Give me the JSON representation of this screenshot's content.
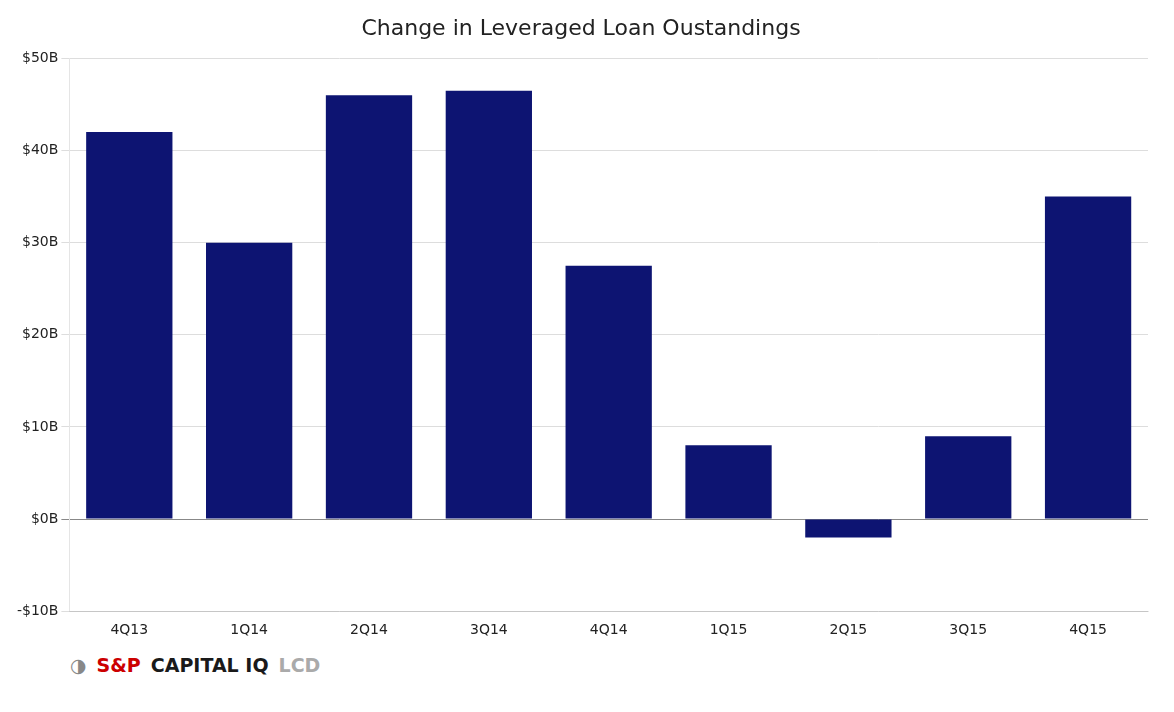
{
  "chart_data": {
    "type": "bar",
    "title": "Change in Leveraged Loan Oustandings",
    "categories": [
      "4Q13",
      "1Q14",
      "2Q14",
      "3Q14",
      "4Q14",
      "1Q15",
      "2Q15",
      "3Q15",
      "4Q15"
    ],
    "values": [
      42,
      30,
      46,
      46.5,
      27.5,
      8,
      -2,
      9,
      35
    ],
    "color": "#0d1472",
    "ylim": [
      -10,
      50
    ],
    "yticks": [
      {
        "value": -10,
        "label": "-$10B"
      },
      {
        "value": 0,
        "label": "$0B"
      },
      {
        "value": 10,
        "label": "$10B"
      },
      {
        "value": 20,
        "label": "$20B"
      },
      {
        "value": 30,
        "label": "$30B"
      },
      {
        "value": 40,
        "label": "$40B"
      },
      {
        "value": 50,
        "label": "$50B"
      }
    ],
    "grid": true,
    "annotations": [
      {
        "text": "◑",
        "color": "#888888"
      },
      {
        "text": "S&P",
        "color": "#cc0000"
      },
      {
        "text": "CAPITAL IQ",
        "color": "#1a1a1a"
      },
      {
        "text": "LCD",
        "color": "#aaaaaa"
      }
    ]
  }
}
